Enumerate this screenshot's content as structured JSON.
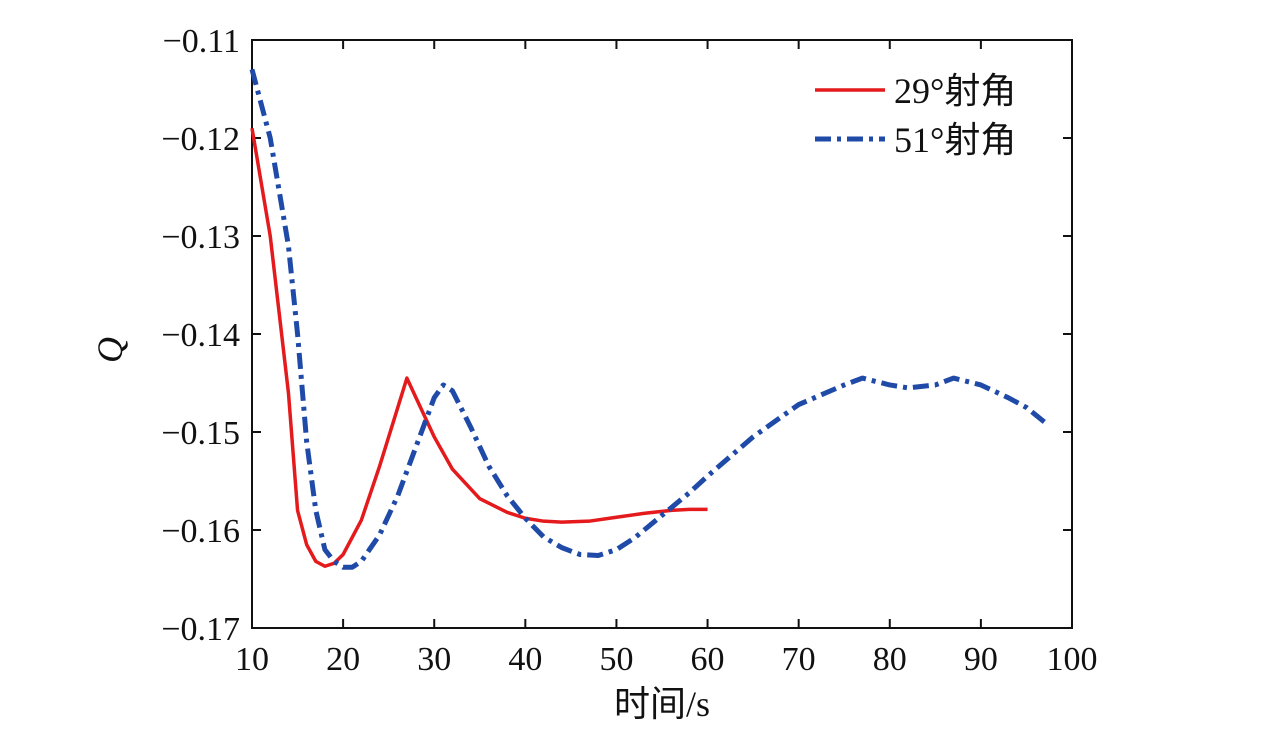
{
  "chart_data": {
    "type": "line",
    "xlabel": "时间/s",
    "ylabel": "Q",
    "xlim": [
      10,
      100
    ],
    "ylim": [
      -0.17,
      -0.11
    ],
    "xticks": [
      10,
      20,
      30,
      40,
      50,
      60,
      70,
      80,
      90,
      100
    ],
    "yticks": [
      -0.17,
      -0.16,
      -0.15,
      -0.14,
      -0.13,
      -0.12,
      -0.11
    ],
    "ytick_labels": [
      "−0.17",
      "−0.16",
      "−0.15",
      "−0.14",
      "−0.13",
      "−0.12",
      "−0.11"
    ],
    "legend_position": "top-right",
    "grid": false,
    "series": [
      {
        "name": "29°射角",
        "color": "#e41a1c",
        "line_style": "solid",
        "x": [
          10,
          12,
          14,
          15,
          16,
          17,
          18,
          19,
          20,
          22,
          24,
          26,
          27,
          28,
          30,
          32,
          35,
          38,
          40,
          42,
          44,
          47,
          50,
          53,
          56,
          58,
          60
        ],
        "y": [
          -0.119,
          -0.13,
          -0.146,
          -0.158,
          -0.1615,
          -0.1632,
          -0.1637,
          -0.1634,
          -0.1625,
          -0.159,
          -0.1535,
          -0.1475,
          -0.1445,
          -0.1465,
          -0.1505,
          -0.1538,
          -0.1568,
          -0.1582,
          -0.1588,
          -0.1591,
          -0.1592,
          -0.1591,
          -0.1587,
          -0.1583,
          -0.158,
          -0.1579,
          -0.1579
        ]
      },
      {
        "name": "51°射角",
        "color": "#1f4aa8",
        "line_style": "dash-dot",
        "x": [
          10,
          12,
          14,
          15,
          16,
          17,
          18,
          19,
          20,
          21,
          22,
          24,
          26,
          28,
          30,
          31,
          32,
          34,
          36,
          38,
          40,
          42,
          44,
          46,
          48,
          50,
          52,
          55,
          58,
          60,
          65,
          70,
          75,
          77,
          80,
          82,
          85,
          87,
          90,
          93,
          95,
          97
        ],
        "y": [
          -0.113,
          -0.12,
          -0.131,
          -0.14,
          -0.151,
          -0.158,
          -0.162,
          -0.1632,
          -0.1638,
          -0.1638,
          -0.1632,
          -0.1605,
          -0.1565,
          -0.1515,
          -0.1465,
          -0.1452,
          -0.1458,
          -0.1495,
          -0.1535,
          -0.1565,
          -0.1588,
          -0.1607,
          -0.1618,
          -0.1625,
          -0.1626,
          -0.162,
          -0.1608,
          -0.1585,
          -0.1562,
          -0.1545,
          -0.1505,
          -0.1472,
          -0.1452,
          -0.1445,
          -0.1452,
          -0.1455,
          -0.1452,
          -0.1445,
          -0.1452,
          -0.1465,
          -0.1475,
          -0.149
        ]
      }
    ]
  }
}
